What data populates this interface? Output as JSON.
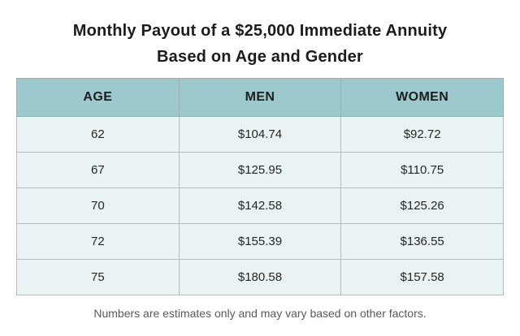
{
  "title": {
    "line1": "Monthly Payout of a $25,000 Immediate Annuity",
    "line2": "Based on Age and Gender"
  },
  "table": {
    "headers": [
      "AGE",
      "MEN",
      "WOMEN"
    ],
    "rows": [
      {
        "age": "62",
        "men": "$104.74",
        "women": "$92.72"
      },
      {
        "age": "67",
        "men": "$125.95",
        "women": "$110.75"
      },
      {
        "age": "70",
        "men": "$142.58",
        "women": "$125.26"
      },
      {
        "age": "72",
        "men": "$155.39",
        "women": "$136.55"
      },
      {
        "age": "75",
        "men": "$180.58",
        "women": "$157.58"
      }
    ]
  },
  "footer": {
    "note": "Numbers are estimates only and may vary based on other factors."
  },
  "colors": {
    "header_bg": "#9bc9cd",
    "row_bg": "#e9f3f3",
    "cell_border": "#b5bcbc",
    "title_text": "#1c1c1c",
    "footer_text": "#58595b",
    "page_bg": "#ffffff"
  },
  "chart_data": {
    "type": "table",
    "title": "Monthly Payout of a $25,000 Immediate Annuity Based on Age and Gender",
    "columns": [
      "AGE",
      "MEN",
      "WOMEN"
    ],
    "rows": [
      [
        62,
        104.74,
        92.72
      ],
      [
        67,
        125.95,
        110.75
      ],
      [
        70,
        142.58,
        125.26
      ],
      [
        72,
        155.39,
        136.55
      ],
      [
        75,
        180.58,
        157.58
      ]
    ],
    "note": "Numbers are estimates only and may vary based on other factors.",
    "units": "USD per month"
  }
}
